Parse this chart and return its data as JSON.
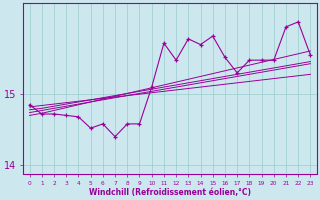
{
  "xlabel": "Windchill (Refroidissement éolien,°C)",
  "bg_color": "#cce8ee",
  "line_color": "#990099",
  "grid_color": "#99cccc",
  "x_data": [
    0,
    1,
    2,
    3,
    4,
    5,
    6,
    7,
    8,
    9,
    10,
    11,
    12,
    13,
    14,
    15,
    16,
    17,
    18,
    19,
    20,
    21,
    22,
    23
  ],
  "y_main": [
    14.85,
    14.72,
    14.72,
    14.7,
    14.68,
    14.52,
    14.58,
    14.4,
    14.58,
    14.58,
    15.1,
    15.72,
    15.48,
    15.78,
    15.7,
    15.82,
    15.52,
    15.3,
    15.48,
    15.48,
    15.48,
    15.95,
    16.02,
    15.55
  ],
  "y_line1": [
    14.82,
    14.84,
    14.86,
    14.88,
    14.9,
    14.92,
    14.94,
    14.96,
    14.98,
    15.0,
    15.02,
    15.04,
    15.06,
    15.08,
    15.1,
    15.12,
    15.14,
    15.16,
    15.18,
    15.2,
    15.22,
    15.24,
    15.26,
    15.28
  ],
  "y_line2": [
    14.78,
    14.8,
    14.83,
    14.86,
    14.89,
    14.92,
    14.95,
    14.98,
    15.01,
    15.04,
    15.07,
    15.1,
    15.13,
    15.16,
    15.19,
    15.22,
    15.25,
    15.28,
    15.31,
    15.34,
    15.37,
    15.4,
    15.43,
    15.46
  ],
  "y_line3": [
    14.74,
    14.77,
    14.8,
    14.83,
    14.86,
    14.89,
    14.92,
    14.95,
    14.98,
    15.01,
    15.04,
    15.07,
    15.1,
    15.13,
    15.16,
    15.19,
    15.22,
    15.25,
    15.28,
    15.31,
    15.34,
    15.37,
    15.4,
    15.43
  ],
  "y_line4": [
    14.7,
    14.73,
    14.77,
    14.81,
    14.85,
    14.89,
    14.93,
    14.97,
    15.01,
    15.05,
    15.09,
    15.13,
    15.17,
    15.21,
    15.25,
    15.29,
    15.33,
    15.37,
    15.41,
    15.45,
    15.49,
    15.53,
    15.57,
    15.61
  ],
  "ylim": [
    13.88,
    16.28
  ],
  "yticks": [
    14,
    15
  ],
  "xlim": [
    -0.5,
    23.5
  ],
  "ylabel_fontsize": 7,
  "xlabel_fontsize": 5.5
}
